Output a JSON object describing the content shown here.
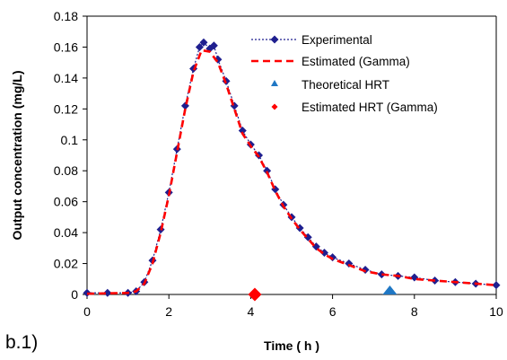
{
  "chart_data": {
    "type": "scatter",
    "panel_label": "b.1)",
    "xlabel": "Time ( h )",
    "ylabel": "Output concentration (mg/L)",
    "xlim": [
      0,
      10
    ],
    "ylim": [
      0,
      0.18
    ],
    "x_ticks": [
      "0",
      "2",
      "4",
      "6",
      "8",
      "10"
    ],
    "y_ticks": [
      "0",
      "0.02",
      "0.04",
      "0.06",
      "0.08",
      "0.1",
      "0.12",
      "0.14",
      "0.16",
      "0.18"
    ],
    "legend_position": "top-right",
    "colors": {
      "experimental": "#1f1f8f",
      "gamma": "#ff0000",
      "theoretical": "#1f77c4"
    },
    "series": [
      {
        "name": "Experimental",
        "style": "dotted-line-diamond",
        "points": [
          [
            0.0,
            0.001
          ],
          [
            0.5,
            0.001
          ],
          [
            1.0,
            0.001
          ],
          [
            1.2,
            0.002
          ],
          [
            1.4,
            0.008
          ],
          [
            1.6,
            0.022
          ],
          [
            1.8,
            0.042
          ],
          [
            2.0,
            0.066
          ],
          [
            2.2,
            0.094
          ],
          [
            2.4,
            0.122
          ],
          [
            2.6,
            0.146
          ],
          [
            2.75,
            0.16
          ],
          [
            2.85,
            0.163
          ],
          [
            3.0,
            0.159
          ],
          [
            3.1,
            0.161
          ],
          [
            3.2,
            0.152
          ],
          [
            3.4,
            0.138
          ],
          [
            3.6,
            0.122
          ],
          [
            3.8,
            0.106
          ],
          [
            4.0,
            0.097
          ],
          [
            4.2,
            0.09
          ],
          [
            4.4,
            0.08
          ],
          [
            4.6,
            0.068
          ],
          [
            4.8,
            0.058
          ],
          [
            5.0,
            0.05
          ],
          [
            5.2,
            0.043
          ],
          [
            5.4,
            0.037
          ],
          [
            5.6,
            0.031
          ],
          [
            5.8,
            0.027
          ],
          [
            6.0,
            0.024
          ],
          [
            6.4,
            0.02
          ],
          [
            6.8,
            0.016
          ],
          [
            7.2,
            0.013
          ],
          [
            7.6,
            0.012
          ],
          [
            8.0,
            0.011
          ],
          [
            8.5,
            0.009
          ],
          [
            9.0,
            0.008
          ],
          [
            9.5,
            0.007
          ],
          [
            10.0,
            0.006
          ]
        ]
      },
      {
        "name": "Estimated (Gamma)",
        "style": "dashed-line",
        "points": [
          [
            0.0,
            0.0005
          ],
          [
            1.0,
            0.001
          ],
          [
            1.2,
            0.002
          ],
          [
            1.4,
            0.007
          ],
          [
            1.6,
            0.02
          ],
          [
            1.8,
            0.04
          ],
          [
            2.0,
            0.064
          ],
          [
            2.2,
            0.092
          ],
          [
            2.4,
            0.12
          ],
          [
            2.6,
            0.144
          ],
          [
            2.8,
            0.158
          ],
          [
            3.0,
            0.157
          ],
          [
            3.2,
            0.15
          ],
          [
            3.4,
            0.136
          ],
          [
            3.6,
            0.12
          ],
          [
            3.8,
            0.104
          ],
          [
            4.0,
            0.096
          ],
          [
            4.2,
            0.089
          ],
          [
            4.4,
            0.079
          ],
          [
            4.6,
            0.067
          ],
          [
            4.8,
            0.057
          ],
          [
            5.0,
            0.049
          ],
          [
            5.2,
            0.042
          ],
          [
            5.4,
            0.036
          ],
          [
            5.6,
            0.03
          ],
          [
            5.8,
            0.026
          ],
          [
            6.0,
            0.023
          ],
          [
            6.4,
            0.019
          ],
          [
            6.8,
            0.015
          ],
          [
            7.2,
            0.013
          ],
          [
            7.6,
            0.012
          ],
          [
            8.0,
            0.01
          ],
          [
            8.5,
            0.009
          ],
          [
            9.0,
            0.008
          ],
          [
            9.5,
            0.007
          ],
          [
            10.0,
            0.006
          ]
        ]
      },
      {
        "name": "Theoretical HRT",
        "style": "triangle-marker",
        "points": [
          [
            7.4,
            0.0
          ]
        ]
      },
      {
        "name": "Estimated HRT (Gamma)",
        "style": "diamond-marker",
        "points": [
          [
            4.1,
            0.0
          ]
        ]
      }
    ]
  }
}
